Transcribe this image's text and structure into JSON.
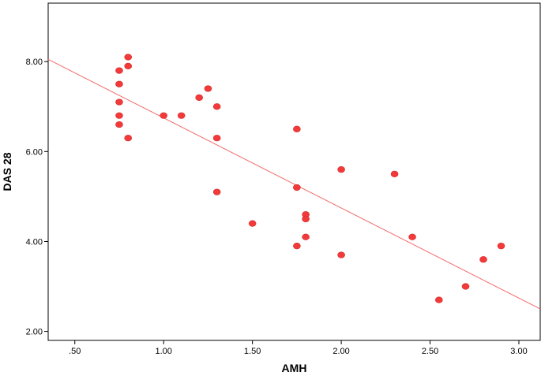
{
  "chart_data": {
    "type": "scatter",
    "title": "",
    "xlabel": "AMH",
    "ylabel": "DAS 28",
    "xlim": [
      0.35,
      3.12
    ],
    "ylim": [
      1.8,
      9.3
    ],
    "x_ticks": [
      0.5,
      1.0,
      1.5,
      2.0,
      2.5,
      3.0
    ],
    "x_tick_labels": [
      ".50",
      "1.00",
      "1.50",
      "2.00",
      "2.50",
      "3.00"
    ],
    "y_ticks": [
      2.0,
      4.0,
      6.0,
      8.0
    ],
    "y_tick_labels": [
      "2.00",
      "4.00",
      "6.00",
      "8.00"
    ],
    "grid": false,
    "legend": "none",
    "points": [
      {
        "x": 0.75,
        "y": 7.8
      },
      {
        "x": 0.75,
        "y": 7.5
      },
      {
        "x": 0.75,
        "y": 7.1
      },
      {
        "x": 0.75,
        "y": 6.8
      },
      {
        "x": 0.75,
        "y": 6.6
      },
      {
        "x": 0.8,
        "y": 8.1
      },
      {
        "x": 0.8,
        "y": 7.9
      },
      {
        "x": 0.8,
        "y": 6.3
      },
      {
        "x": 1.0,
        "y": 6.8
      },
      {
        "x": 1.1,
        "y": 6.8
      },
      {
        "x": 1.2,
        "y": 7.2
      },
      {
        "x": 1.25,
        "y": 7.4
      },
      {
        "x": 1.3,
        "y": 7.0
      },
      {
        "x": 1.3,
        "y": 6.3
      },
      {
        "x": 1.3,
        "y": 5.1
      },
      {
        "x": 1.5,
        "y": 4.4
      },
      {
        "x": 1.75,
        "y": 6.5
      },
      {
        "x": 1.75,
        "y": 5.2
      },
      {
        "x": 1.75,
        "y": 3.9
      },
      {
        "x": 1.8,
        "y": 4.6
      },
      {
        "x": 1.8,
        "y": 4.5
      },
      {
        "x": 1.8,
        "y": 4.1
      },
      {
        "x": 2.0,
        "y": 5.6
      },
      {
        "x": 2.0,
        "y": 3.7
      },
      {
        "x": 2.3,
        "y": 5.5
      },
      {
        "x": 2.4,
        "y": 4.1
      },
      {
        "x": 2.55,
        "y": 2.7
      },
      {
        "x": 2.7,
        "y": 3.0
      },
      {
        "x": 2.8,
        "y": 3.6
      },
      {
        "x": 2.9,
        "y": 3.9
      }
    ],
    "fit_line": {
      "x": [
        0.35,
        3.12
      ],
      "y": [
        8.05,
        2.5
      ]
    },
    "colors": {
      "points": "#f23a3a",
      "fit_line": "#f26a6a",
      "axes": "#000000"
    }
  }
}
